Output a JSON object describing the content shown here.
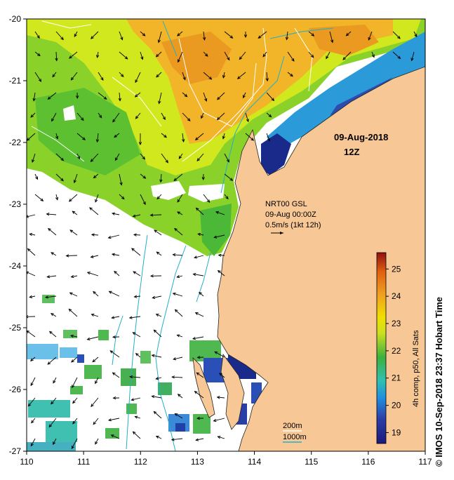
{
  "map": {
    "date_title": "09-Aug-2018",
    "time_title": "12Z",
    "vector_legend": {
      "line1": "NRT00 GSL",
      "line2": "09-Aug 00:00Z",
      "line3": "0.5m/s (1kt 12h)"
    },
    "contour_legend": {
      "shallow": "200m",
      "deep": "1000m"
    },
    "x_axis": {
      "ticks": [
        "110",
        "111",
        "112",
        "113",
        "114",
        "115",
        "116",
        "117"
      ],
      "range": [
        110,
        117
      ]
    },
    "y_axis": {
      "ticks": [
        "-20",
        "-21",
        "-22",
        "-23",
        "-24",
        "-25",
        "-26",
        "-27"
      ],
      "range": [
        -27,
        -20
      ]
    },
    "colorbar": {
      "label": "4h comp, p50, All Sats",
      "ticks": [
        "19",
        "20",
        "21",
        "22",
        "23",
        "24",
        "25"
      ],
      "range": [
        18.6,
        25.6
      ]
    },
    "credit": "© IMOS 10-Sep-2018 23:37 Hobart Time",
    "colors": {
      "land": "#f7c796",
      "current": "#20b0c8",
      "contour": "#ffffff",
      "ocean_bg": "#ffffff"
    }
  }
}
